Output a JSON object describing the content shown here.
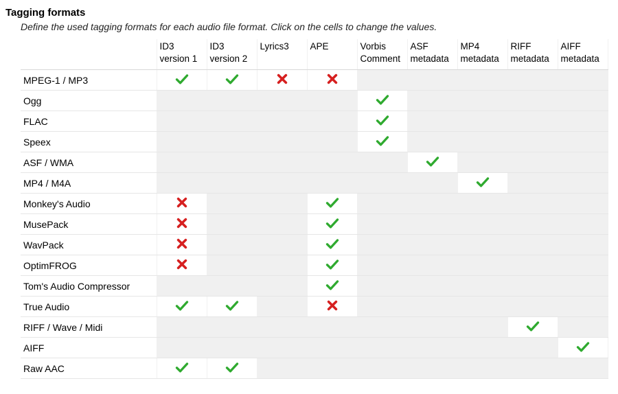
{
  "title": "Tagging formats",
  "subtitle": "Define the used tagging formats for each audio file format. Click on the cells to change the values.",
  "colors": {
    "check": "#2faa2f",
    "cross": "#d62020",
    "disabled_bg": "#f0f0f0",
    "enabled_bg": "#ffffff",
    "grid_line": "#e6e6e6"
  },
  "columns": [
    {
      "id": "id3v1",
      "line1": "ID3",
      "line2": "version 1"
    },
    {
      "id": "id3v2",
      "line1": "ID3",
      "line2": "version 2"
    },
    {
      "id": "lyrics3",
      "line1": "Lyrics3",
      "line2": ""
    },
    {
      "id": "ape",
      "line1": "APE",
      "line2": ""
    },
    {
      "id": "vorbis",
      "line1": "Vorbis",
      "line2": "Comment"
    },
    {
      "id": "asf",
      "line1": "ASF",
      "line2": "metadata"
    },
    {
      "id": "mp4",
      "line1": "MP4",
      "line2": "metadata"
    },
    {
      "id": "riff",
      "line1": "RIFF",
      "line2": "metadata"
    },
    {
      "id": "aiff",
      "line1": "AIFF",
      "line2": "metadata"
    }
  ],
  "rows": [
    {
      "name": "MPEG-1 / MP3",
      "cells": [
        "check",
        "check",
        "cross",
        "cross",
        null,
        null,
        null,
        null,
        null
      ]
    },
    {
      "name": "Ogg",
      "cells": [
        null,
        null,
        null,
        null,
        "check",
        null,
        null,
        null,
        null
      ]
    },
    {
      "name": "FLAC",
      "cells": [
        null,
        null,
        null,
        null,
        "check",
        null,
        null,
        null,
        null
      ]
    },
    {
      "name": "Speex",
      "cells": [
        null,
        null,
        null,
        null,
        "check",
        null,
        null,
        null,
        null
      ]
    },
    {
      "name": "ASF / WMA",
      "cells": [
        null,
        null,
        null,
        null,
        null,
        "check",
        null,
        null,
        null
      ]
    },
    {
      "name": "MP4 / M4A",
      "cells": [
        null,
        null,
        null,
        null,
        null,
        null,
        "check",
        null,
        null
      ]
    },
    {
      "name": "Monkey's Audio",
      "cells": [
        "cross",
        null,
        null,
        "check",
        null,
        null,
        null,
        null,
        null
      ]
    },
    {
      "name": "MusePack",
      "cells": [
        "cross",
        null,
        null,
        "check",
        null,
        null,
        null,
        null,
        null
      ]
    },
    {
      "name": "WavPack",
      "cells": [
        "cross",
        null,
        null,
        "check",
        null,
        null,
        null,
        null,
        null
      ]
    },
    {
      "name": "OptimFROG",
      "cells": [
        "cross",
        null,
        null,
        "check",
        null,
        null,
        null,
        null,
        null
      ]
    },
    {
      "name": "Tom's Audio Compressor",
      "cells": [
        null,
        null,
        null,
        "check",
        null,
        null,
        null,
        null,
        null
      ]
    },
    {
      "name": "True Audio",
      "cells": [
        "check",
        "check",
        null,
        "cross",
        null,
        null,
        null,
        null,
        null
      ]
    },
    {
      "name": "RIFF / Wave / Midi",
      "cells": [
        null,
        null,
        null,
        null,
        null,
        null,
        null,
        "check",
        null
      ]
    },
    {
      "name": "AIFF",
      "cells": [
        null,
        null,
        null,
        null,
        null,
        null,
        null,
        null,
        "check"
      ]
    },
    {
      "name": "Raw AAC",
      "cells": [
        "check",
        "check",
        null,
        null,
        null,
        null,
        null,
        null,
        null
      ]
    }
  ]
}
